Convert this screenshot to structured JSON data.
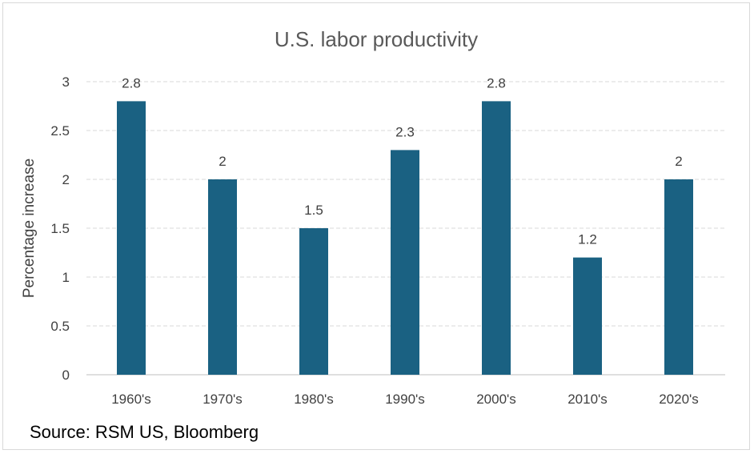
{
  "chart_data": {
    "type": "bar",
    "title": "U.S. labor productivity",
    "xlabel": "",
    "ylabel": "Percentage increase",
    "categories": [
      "1960's",
      "1970's",
      "1980's",
      "1990's",
      "2000's",
      "2010's",
      "2020's"
    ],
    "values": [
      2.8,
      2,
      1.5,
      2.3,
      2.8,
      1.2,
      2
    ],
    "value_labels": [
      "2.8",
      "2",
      "1.5",
      "2.3",
      "2.8",
      "1.2",
      "2"
    ],
    "ylim": [
      0,
      3
    ],
    "yticks": [
      "0",
      "0.5",
      "1",
      "1.5",
      "2",
      "2.5",
      "3"
    ],
    "grid": true,
    "bar_color": "#1a6182"
  },
  "source": "Source: RSM US, Bloomberg"
}
